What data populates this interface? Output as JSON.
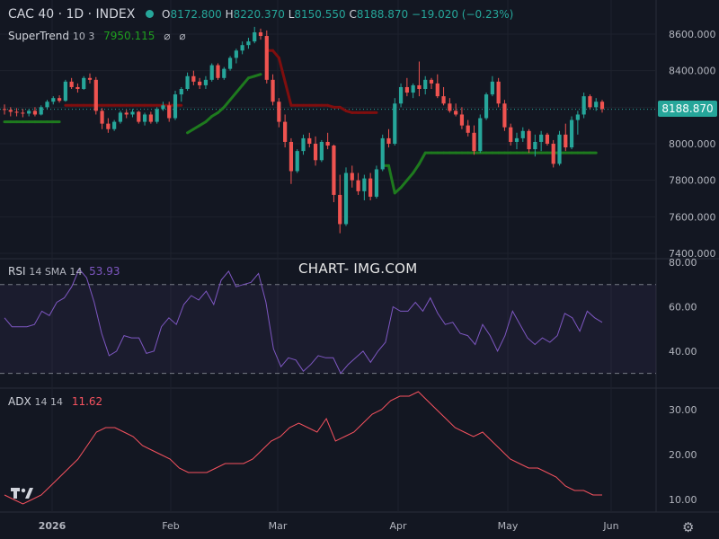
{
  "header": {
    "symbol": "CAC 40 · 1D · INDEX",
    "open_key": "O",
    "open_val": "8172.800",
    "high_key": "H",
    "high_val": "8220.370",
    "low_key": "L",
    "low_val": "8150.550",
    "close_key": "C",
    "close_val": "8188.870",
    "change": "−19.020 (−0.23%)",
    "supertrend_label": "SuperTrend",
    "supertrend_params": "10 3",
    "supertrend_val": "7950.115",
    "rsi_label": "RSI",
    "rsi_params": "14 SMA 14",
    "rsi_val": "53.93",
    "adx_label": "ADX",
    "adx_params": "14 14",
    "adx_val": "11.62"
  },
  "price_tag": "8188.870",
  "watermark": "CHART- IMG.COM",
  "colors": {
    "up": "#26a69a",
    "down": "#ef5350",
    "st_up": "#1e7a1e",
    "st_down": "#7f0e0e",
    "rsi": "#7e57c2",
    "adx": "#f7525f"
  },
  "chart_data": [
    {
      "type": "candlestick",
      "title": "CAC 40 · 1D · INDEX",
      "ylim": [
        7400,
        8700
      ],
      "y_ticks": [
        "8600.000",
        "8400.000",
        "8200.000",
        "8000.000",
        "7800.000",
        "7600.000",
        "7400.000"
      ],
      "x_ticks": [
        "2026",
        "Feb",
        "Mar",
        "Apr",
        "May",
        "Jun"
      ],
      "last_price": 8188.87,
      "candles": [
        [
          8190,
          8215,
          8160,
          8185
        ],
        [
          8185,
          8200,
          8150,
          8175
        ],
        [
          8175,
          8195,
          8150,
          8170
        ],
        [
          8170,
          8190,
          8145,
          8165
        ],
        [
          8165,
          8190,
          8150,
          8180
        ],
        [
          8180,
          8200,
          8150,
          8160
        ],
        [
          8160,
          8210,
          8155,
          8200
        ],
        [
          8200,
          8240,
          8190,
          8230
        ],
        [
          8230,
          8260,
          8215,
          8250
        ],
        [
          8250,
          8265,
          8225,
          8235
        ],
        [
          8235,
          8350,
          8230,
          8340
        ],
        [
          8340,
          8360,
          8300,
          8310
        ],
        [
          8310,
          8330,
          8280,
          8300
        ],
        [
          8300,
          8370,
          8295,
          8360
        ],
        [
          8360,
          8385,
          8330,
          8350
        ],
        [
          8350,
          8365,
          8160,
          8180
        ],
        [
          8180,
          8195,
          8080,
          8110
        ],
        [
          8110,
          8140,
          8060,
          8080
        ],
        [
          8080,
          8130,
          8070,
          8120
        ],
        [
          8120,
          8180,
          8110,
          8170
        ],
        [
          8170,
          8185,
          8140,
          8160
        ],
        [
          8160,
          8190,
          8145,
          8175
        ],
        [
          8175,
          8180,
          8110,
          8120
        ],
        [
          8120,
          8170,
          8100,
          8160
        ],
        [
          8160,
          8175,
          8110,
          8120
        ],
        [
          8120,
          8200,
          8110,
          8190
        ],
        [
          8190,
          8230,
          8180,
          8210
        ],
        [
          8210,
          8230,
          8120,
          8140
        ],
        [
          8140,
          8290,
          8130,
          8270
        ],
        [
          8270,
          8310,
          8230,
          8300
        ],
        [
          8300,
          8390,
          8290,
          8370
        ],
        [
          8370,
          8400,
          8320,
          8340
        ],
        [
          8340,
          8360,
          8300,
          8320
        ],
        [
          8320,
          8370,
          8300,
          8350
        ],
        [
          8350,
          8440,
          8340,
          8430
        ],
        [
          8430,
          8440,
          8350,
          8360
        ],
        [
          8360,
          8420,
          8350,
          8410
        ],
        [
          8410,
          8480,
          8400,
          8470
        ],
        [
          8470,
          8520,
          8440,
          8510
        ],
        [
          8510,
          8560,
          8490,
          8540
        ],
        [
          8540,
          8580,
          8520,
          8560
        ],
        [
          8560,
          8640,
          8550,
          8610
        ],
        [
          8610,
          8630,
          8570,
          8590
        ],
        [
          8590,
          8620,
          8330,
          8350
        ],
        [
          8350,
          8380,
          8210,
          8230
        ],
        [
          8230,
          8250,
          8090,
          8120
        ],
        [
          8120,
          8160,
          7980,
          8010
        ],
        [
          8010,
          8030,
          7780,
          7850
        ],
        [
          7850,
          7970,
          7840,
          7960
        ],
        [
          7960,
          8050,
          7940,
          8030
        ],
        [
          8030,
          8060,
          7980,
          8000
        ],
        [
          8000,
          8040,
          7880,
          7910
        ],
        [
          7910,
          8020,
          7900,
          8010
        ],
        [
          8010,
          8060,
          7970,
          7990
        ],
        [
          7990,
          7995,
          7680,
          7720
        ],
        [
          7720,
          7830,
          7510,
          7560
        ],
        [
          7560,
          7870,
          7550,
          7840
        ],
        [
          7840,
          7880,
          7760,
          7800
        ],
        [
          7800,
          7840,
          7720,
          7740
        ],
        [
          7740,
          7830,
          7690,
          7810
        ],
        [
          7810,
          7840,
          7690,
          7710
        ],
        [
          7710,
          7880,
          7700,
          7860
        ],
        [
          7860,
          8050,
          7850,
          8030
        ],
        [
          8030,
          8080,
          7980,
          8000
        ],
        [
          8000,
          8250,
          7990,
          8220
        ],
        [
          8220,
          8330,
          8200,
          8310
        ],
        [
          8310,
          8360,
          8260,
          8280
        ],
        [
          8280,
          8330,
          8250,
          8320
        ],
        [
          8320,
          8450,
          8260,
          8300
        ],
        [
          8300,
          8370,
          8270,
          8350
        ],
        [
          8350,
          8360,
          8300,
          8330
        ],
        [
          8330,
          8380,
          8250,
          8260
        ],
        [
          8260,
          8310,
          8210,
          8220
        ],
        [
          8220,
          8250,
          8170,
          8180
        ],
        [
          8180,
          8220,
          8150,
          8160
        ],
        [
          8160,
          8200,
          8080,
          8100
        ],
        [
          8100,
          8130,
          8040,
          8060
        ],
        [
          8060,
          8100,
          7940,
          7960
        ],
        [
          7960,
          8160,
          7950,
          8140
        ],
        [
          8140,
          8280,
          8130,
          8270
        ],
        [
          8270,
          8370,
          8260,
          8340
        ],
        [
          8340,
          8360,
          8200,
          8220
        ],
        [
          8220,
          8240,
          8070,
          8090
        ],
        [
          8090,
          8110,
          7990,
          8010
        ],
        [
          8010,
          8060,
          7970,
          8030
        ],
        [
          8030,
          8090,
          8010,
          8070
        ],
        [
          8070,
          8080,
          7950,
          7970
        ],
        [
          7970,
          8050,
          7930,
          8010
        ],
        [
          8010,
          8070,
          7960,
          8050
        ],
        [
          8050,
          8060,
          7990,
          8000
        ],
        [
          8000,
          8020,
          7870,
          7890
        ],
        [
          7890,
          8070,
          7880,
          8050
        ],
        [
          8050,
          8110,
          7960,
          7980
        ],
        [
          7980,
          8150,
          7970,
          8130
        ],
        [
          8130,
          8180,
          8050,
          8160
        ],
        [
          8160,
          8280,
          8140,
          8260
        ],
        [
          8260,
          8270,
          8190,
          8200
        ],
        [
          8200,
          8250,
          8180,
          8230
        ],
        [
          8230,
          8240,
          8170,
          8190
        ]
      ],
      "supertrend": [
        [
          8120,
          "up"
        ],
        [
          8120,
          "up"
        ],
        [
          8120,
          "up"
        ],
        [
          8120,
          "up"
        ],
        [
          8120,
          "up"
        ],
        [
          8120,
          "up"
        ],
        [
          8120,
          "up"
        ],
        [
          8120,
          "up"
        ],
        [
          8120,
          "up"
        ],
        [
          8120,
          "up"
        ],
        [
          8210,
          "down"
        ],
        [
          8210,
          "down"
        ],
        [
          8210,
          "down"
        ],
        [
          8210,
          "down"
        ],
        [
          8210,
          "down"
        ],
        [
          8210,
          "down"
        ],
        [
          8210,
          "down"
        ],
        [
          8210,
          "down"
        ],
        [
          8210,
          "down"
        ],
        [
          8210,
          "down"
        ],
        [
          8210,
          "down"
        ],
        [
          8210,
          "down"
        ],
        [
          8210,
          "down"
        ],
        [
          8210,
          "down"
        ],
        [
          8210,
          "down"
        ],
        [
          8210,
          "down"
        ],
        [
          8210,
          "down"
        ],
        [
          8210,
          "down"
        ],
        [
          8210,
          "down"
        ],
        [
          8210,
          "down"
        ],
        [
          8060,
          "up"
        ],
        [
          8080,
          "up"
        ],
        [
          8100,
          "up"
        ],
        [
          8120,
          "up"
        ],
        [
          8150,
          "up"
        ],
        [
          8170,
          "up"
        ],
        [
          8200,
          "up"
        ],
        [
          8240,
          "up"
        ],
        [
          8280,
          "up"
        ],
        [
          8320,
          "up"
        ],
        [
          8360,
          "up"
        ],
        [
          8370,
          "up"
        ],
        [
          8380,
          "up"
        ],
        [
          8510,
          "down"
        ],
        [
          8510,
          "down"
        ],
        [
          8470,
          "down"
        ],
        [
          8340,
          "down"
        ],
        [
          8210,
          "down"
        ],
        [
          8210,
          "down"
        ],
        [
          8210,
          "down"
        ],
        [
          8210,
          "down"
        ],
        [
          8210,
          "down"
        ],
        [
          8210,
          "down"
        ],
        [
          8210,
          "down"
        ],
        [
          8200,
          "down"
        ],
        [
          8200,
          "down"
        ],
        [
          8180,
          "down"
        ],
        [
          8170,
          "down"
        ],
        [
          8170,
          "down"
        ],
        [
          8170,
          "down"
        ],
        [
          8170,
          "down"
        ],
        [
          8170,
          "down"
        ],
        [
          7880,
          "up"
        ],
        [
          7880,
          "up"
        ],
        [
          7730,
          "up"
        ],
        [
          7760,
          "up"
        ],
        [
          7800,
          "up"
        ],
        [
          7840,
          "up"
        ],
        [
          7890,
          "up"
        ],
        [
          7950,
          "up"
        ],
        [
          7950,
          "up"
        ],
        [
          7950,
          "up"
        ],
        [
          7950,
          "up"
        ],
        [
          7950,
          "up"
        ],
        [
          7950,
          "up"
        ],
        [
          7950,
          "up"
        ],
        [
          7950,
          "up"
        ],
        [
          7950,
          "up"
        ],
        [
          7950,
          "up"
        ],
        [
          7950,
          "up"
        ],
        [
          7950,
          "up"
        ],
        [
          7950,
          "up"
        ],
        [
          7950,
          "up"
        ],
        [
          7950,
          "up"
        ],
        [
          7950,
          "up"
        ],
        [
          7950,
          "up"
        ],
        [
          7950,
          "up"
        ],
        [
          7950,
          "up"
        ],
        [
          7950,
          "up"
        ],
        [
          7950,
          "up"
        ],
        [
          7950,
          "up"
        ],
        [
          7950,
          "up"
        ],
        [
          7950,
          "up"
        ],
        [
          7950,
          "up"
        ],
        [
          7950,
          "up"
        ],
        [
          7950,
          "up"
        ],
        [
          7950,
          "up"
        ],
        [
          7950,
          "up"
        ]
      ]
    },
    {
      "type": "line",
      "title": "RSI 14 SMA 14",
      "ylim": [
        25,
        80
      ],
      "y_ticks": [
        "80.00",
        "60.00",
        "40.00"
      ],
      "bands": [
        70,
        30
      ],
      "values": [
        55,
        51,
        51,
        51,
        52,
        58,
        56,
        62,
        64,
        69,
        77,
        73,
        62,
        48,
        38,
        40,
        47,
        46,
        46,
        39,
        40,
        51,
        55,
        52,
        61,
        65,
        63,
        67,
        61,
        72,
        76,
        69,
        70,
        71,
        75,
        62,
        41,
        33,
        37,
        36,
        31,
        34,
        38,
        37,
        37,
        30,
        34,
        37,
        40,
        35,
        40,
        44,
        60,
        58,
        58,
        62,
        58,
        64,
        57,
        52,
        53,
        48,
        47,
        43,
        52,
        47,
        40,
        47,
        58,
        52,
        46,
        43,
        46,
        44,
        47,
        57,
        55,
        49,
        58,
        55,
        53
      ]
    },
    {
      "type": "line",
      "title": "ADX 14 14",
      "ylim": [
        8,
        34
      ],
      "y_ticks": [
        "30.00",
        "20.00",
        "10.00"
      ],
      "values": [
        11,
        10,
        9,
        10,
        11,
        13,
        15,
        17,
        19,
        22,
        25,
        26,
        26,
        25,
        24,
        22,
        21,
        20,
        19,
        17,
        16,
        16,
        16,
        17,
        18,
        18,
        18,
        19,
        21,
        23,
        24,
        26,
        27,
        26,
        25,
        28,
        23,
        24,
        25,
        27,
        29,
        30,
        32,
        33,
        33,
        34,
        32,
        30,
        28,
        26,
        25,
        24,
        25,
        23,
        21,
        19,
        18,
        17,
        17,
        16,
        15,
        13,
        12,
        12,
        11,
        11
      ]
    }
  ]
}
